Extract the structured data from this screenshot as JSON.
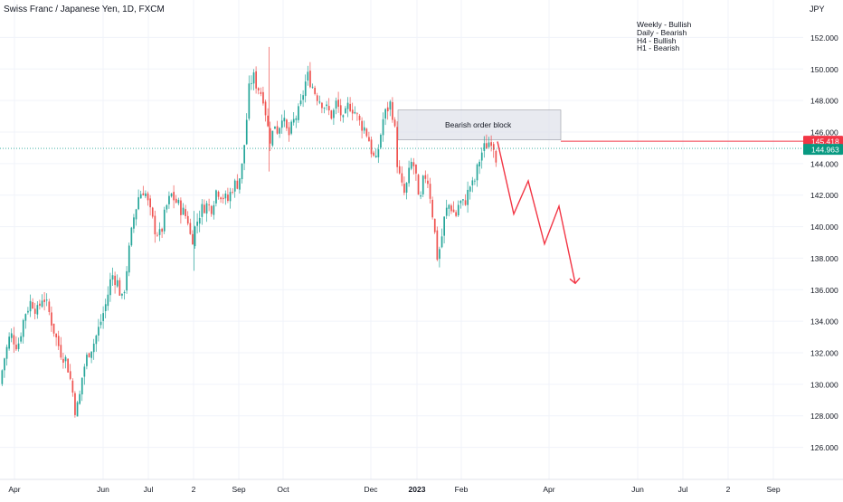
{
  "header": {
    "symbol_title": "Swiss Franc / Japanese Yen, 1D, FXCM",
    "currency": "JPY"
  },
  "bias_notes": [
    "Weekly - Bullish",
    "Daily - Bearish",
    "H4 - Bullish",
    "H1 - Bearish"
  ],
  "price_tags": {
    "red_value": "145.418",
    "green_value": "144.963"
  },
  "annotation": {
    "order_block_label": "Bearish order block"
  },
  "colors": {
    "up": "#26a69a",
    "down": "#ef5350",
    "projection": "#f23645",
    "order_block_fill": "#e0e3eb",
    "grid": "#f0f3fa"
  },
  "chart_data": {
    "type": "candlestick",
    "y_axis": {
      "unit": "JPY",
      "ylim": [
        124.5,
        153.5
      ],
      "ticks": [
        "126.000",
        "128.000",
        "130.000",
        "132.000",
        "134.000",
        "136.000",
        "138.000",
        "140.000",
        "142.000",
        "144.000",
        "146.000",
        "148.000",
        "150.000",
        "152.000"
      ],
      "position": "right"
    },
    "x_axis": {
      "ticks": [
        "Apr",
        "Jun",
        "Jul",
        "2",
        "Sep",
        "Oct",
        "Dec",
        "2023",
        "Feb",
        "Apr",
        "Jun",
        "Jul",
        "2",
        "Sep"
      ]
    },
    "grid": true,
    "price_path": [
      [
        0,
        130.0
      ],
      [
        5,
        131.6
      ],
      [
        12,
        133.2
      ],
      [
        20,
        132.4
      ],
      [
        28,
        134.5
      ],
      [
        35,
        135.3
      ],
      [
        42,
        134.6
      ],
      [
        48,
        135.7
      ],
      [
        55,
        134.5
      ],
      [
        62,
        133.0
      ],
      [
        68,
        132.0
      ],
      [
        74,
        131.5
      ],
      [
        80,
        129.8
      ],
      [
        84,
        128.2
      ],
      [
        88,
        129.0
      ],
      [
        92,
        130.8
      ],
      [
        98,
        132.0
      ],
      [
        104,
        132.6
      ],
      [
        110,
        133.6
      ],
      [
        118,
        135.2
      ],
      [
        124,
        137.0
      ],
      [
        130,
        136.5
      ],
      [
        136,
        135.2
      ],
      [
        142,
        138.0
      ],
      [
        148,
        140.5
      ],
      [
        154,
        142.0
      ],
      [
        160,
        142.4
      ],
      [
        166,
        141.0
      ],
      [
        172,
        139.8
      ],
      [
        178,
        139.4
      ],
      [
        184,
        141.2
      ],
      [
        190,
        142.0
      ],
      [
        196,
        141.5
      ],
      [
        202,
        141.0
      ],
      [
        208,
        140.5
      ],
      [
        212,
        139.0
      ],
      [
        216,
        139.9
      ],
      [
        222,
        141.0
      ],
      [
        228,
        141.4
      ],
      [
        234,
        141.2
      ],
      [
        240,
        142.4
      ],
      [
        246,
        142.0
      ],
      [
        252,
        141.6
      ],
      [
        258,
        142.6
      ],
      [
        264,
        142.8
      ],
      [
        268,
        143.8
      ],
      [
        272,
        146.0
      ],
      [
        276,
        148.8
      ],
      [
        280,
        149.6
      ],
      [
        284,
        149.0
      ],
      [
        288,
        148.6
      ],
      [
        292,
        148.2
      ],
      [
        296,
        146.4
      ],
      [
        300,
        145.4
      ],
      [
        304,
        146.6
      ],
      [
        308,
        146.0
      ],
      [
        312,
        147.2
      ],
      [
        316,
        146.2
      ],
      [
        320,
        145.8
      ],
      [
        326,
        146.8
      ],
      [
        332,
        147.4
      ],
      [
        336,
        148.6
      ],
      [
        340,
        149.6
      ],
      [
        344,
        149.2
      ],
      [
        348,
        148.6
      ],
      [
        352,
        148.2
      ],
      [
        358,
        147.8
      ],
      [
        362,
        147.4
      ],
      [
        368,
        147.0
      ],
      [
        372,
        147.8
      ],
      [
        376,
        147.4
      ],
      [
        380,
        146.6
      ],
      [
        386,
        147.8
      ],
      [
        392,
        147.4
      ],
      [
        398,
        146.6
      ],
      [
        404,
        146.2
      ],
      [
        408,
        145.6
      ],
      [
        412,
        144.6
      ],
      [
        416,
        144.0
      ],
      [
        420,
        145.4
      ],
      [
        424,
        146.8
      ],
      [
        428,
        147.4
      ],
      [
        432,
        147.8
      ],
      [
        436,
        146.8
      ],
      [
        440,
        143.8
      ],
      [
        444,
        142.6
      ],
      [
        448,
        142.0
      ],
      [
        452,
        143.2
      ],
      [
        456,
        144.2
      ],
      [
        460,
        143.4
      ],
      [
        464,
        141.0
      ],
      [
        468,
        142.8
      ],
      [
        472,
        143.4
      ],
      [
        476,
        142.0
      ],
      [
        480,
        140.2
      ],
      [
        484,
        138.0
      ],
      [
        488,
        139.0
      ],
      [
        492,
        140.6
      ],
      [
        496,
        141.4
      ],
      [
        500,
        141.2
      ],
      [
        504,
        140.6
      ],
      [
        508,
        141.6
      ],
      [
        512,
        141.4
      ],
      [
        516,
        141.8
      ],
      [
        520,
        142.6
      ],
      [
        524,
        142.6
      ],
      [
        528,
        143.6
      ],
      [
        532,
        144.6
      ],
      [
        536,
        145.0
      ],
      [
        540,
        145.3
      ],
      [
        544,
        145.6
      ],
      [
        546,
        145.2
      ],
      [
        549,
        144.4
      ]
    ],
    "order_block": {
      "x_from": 440,
      "x_to": 620,
      "y_from": 145.5,
      "y_to": 147.4,
      "label": "Bearish order block"
    },
    "price_lines": [
      {
        "value": 145.418,
        "color": "red"
      },
      {
        "value": 144.963,
        "color": "green"
      }
    ],
    "projection_path": [
      [
        550,
        145.4
      ],
      [
        568,
        140.8
      ],
      [
        584,
        142.9
      ],
      [
        602,
        138.9
      ],
      [
        618,
        141.3
      ],
      [
        636,
        136.4
      ]
    ]
  }
}
